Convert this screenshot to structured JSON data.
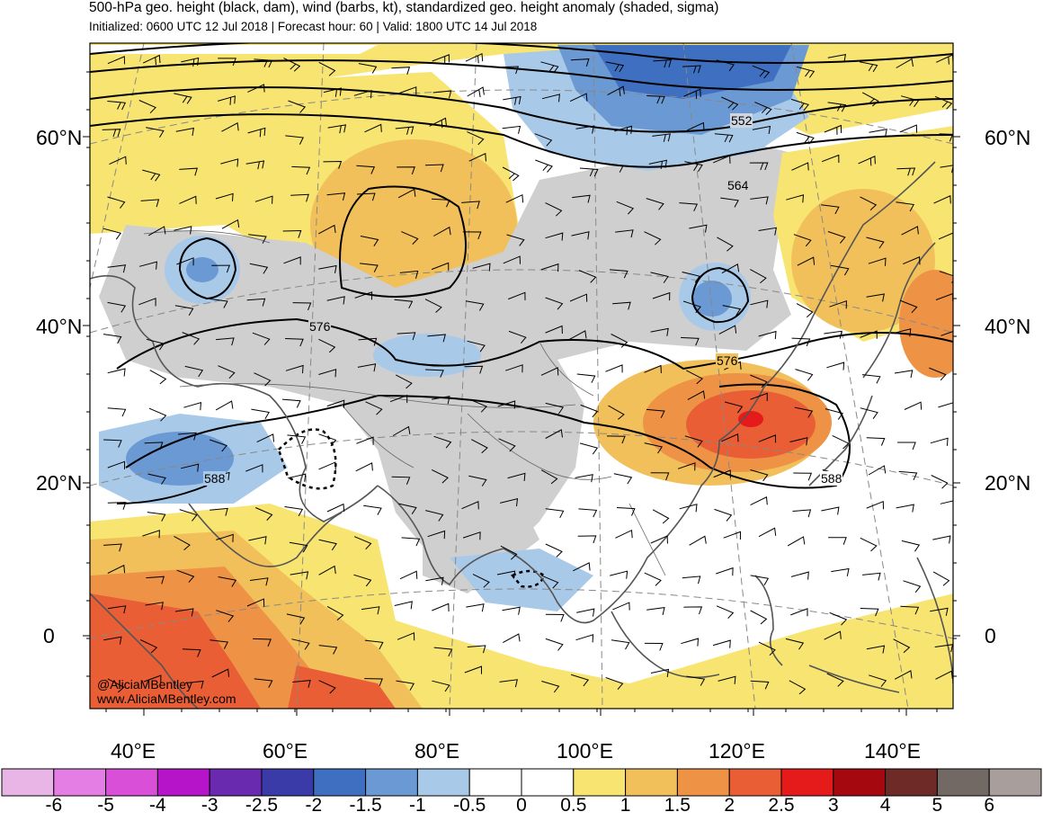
{
  "header": {
    "title": "500-hPa geo. height (black, dam), wind (barbs, kt), standardized geo. height anomaly (shaded, sigma)",
    "subtitle": "Initialized: 0600 UTC 12 Jul 2018 | Forecast hour: 60 | Valid: 1800 UTC 14 Jul 2018"
  },
  "map": {
    "lat_labels": [
      "60°N",
      "40°N",
      "20°N",
      "0"
    ],
    "lon_labels": [
      "40°E",
      "60°E",
      "80°E",
      "100°E",
      "120°E",
      "140°E"
    ],
    "contour_labels": [
      "552",
      "564",
      "576",
      "588"
    ],
    "credit_lines": [
      "@AliciaMBentley",
      "www.AliciaMBentley.com"
    ]
  },
  "colorbar": {
    "labels": [
      "-6",
      "-5",
      "-4",
      "-3",
      "-2.5",
      "-2",
      "-1.5",
      "-1",
      "-0.5",
      "0",
      "0.5",
      "1",
      "1.5",
      "2",
      "2.5",
      "3",
      "4",
      "5",
      "6"
    ],
    "colors": [
      "#e9b4e6",
      "#e57ee4",
      "#d94fd8",
      "#b514c9",
      "#6a2ab0",
      "#3a3ba8",
      "#3f6fc0",
      "#6a99d3",
      "#a9c9e9",
      "#ffffff",
      "#ffffff",
      "#f8e571",
      "#f2c05a",
      "#ee9346",
      "#ea5e36",
      "#e51a1a",
      "#a5090f",
      "#6e2a26",
      "#726864",
      "#a89f9d"
    ]
  }
}
